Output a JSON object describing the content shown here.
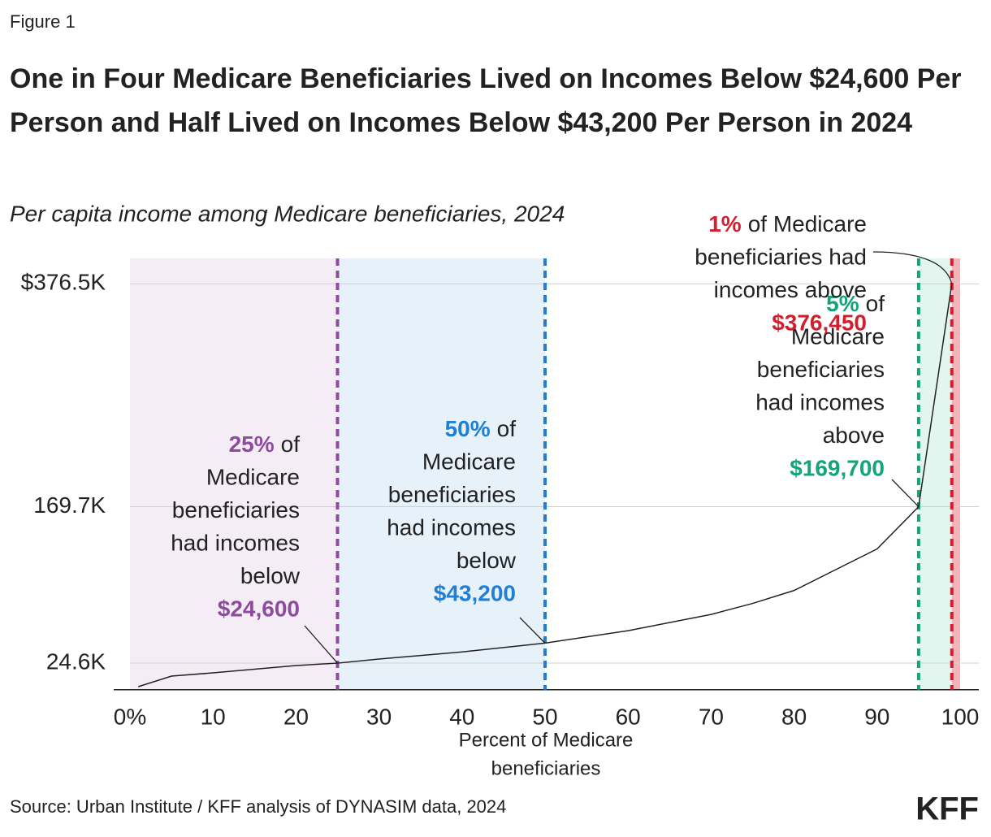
{
  "chart_data": {
    "type": "line",
    "figure_label": "Figure 1",
    "title": "One in Four Medicare Beneficiaries Lived on Incomes Below $24,600 Per Person and Half Lived on Incomes Below $43,200 Per Person in 2024",
    "subtitle": "Per capita income among Medicare beneficiaries, 2024",
    "xlabel": [
      "Percent of Medicare",
      "beneficiaries"
    ],
    "source": "Source: Urban Institute / KFF analysis of DYNASIM data, 2024",
    "logo": "KFF",
    "x": [
      1,
      5,
      10,
      20,
      25,
      30,
      40,
      50,
      60,
      70,
      75,
      80,
      90,
      95,
      99
    ],
    "series": [
      {
        "color": "#222222",
        "values": [
          2800,
          12600,
          15600,
          22400,
          24600,
          28400,
          35000,
          43200,
          54700,
          69800,
          80000,
          92000,
          130500,
          169700,
          376450
        ]
      }
    ],
    "xlim": [
      0,
      100
    ],
    "xticks": [
      {
        "value": 0,
        "label": "0%"
      },
      10,
      20,
      30,
      40,
      50,
      60,
      70,
      80,
      90,
      100
    ],
    "ylim": [
      0,
      400000
    ],
    "yticks": [
      {
        "value": 24600,
        "label": "24.6K"
      },
      {
        "value": 169700,
        "label": "169.7K"
      },
      {
        "value": 376450,
        "label": "$376.5K"
      }
    ],
    "grid": true,
    "annotations": [
      {
        "x": 25,
        "lead": "25%",
        "lines": [
          "of",
          "Medicare",
          "beneficiaries",
          "had incomes",
          "below"
        ],
        "value": "$24,600",
        "color": "#8e4a9d",
        "fill": "#f4edf6"
      },
      {
        "x": 50,
        "lead": "50%",
        "lines": [
          "of",
          "Medicare",
          "beneficiaries",
          "had incomes",
          "below"
        ],
        "value": "$43,200",
        "color": "#1f7fd4",
        "fill": "#e7f1fa"
      },
      {
        "x": 95,
        "lead": "5%",
        "lines": [
          "of",
          "Medicare",
          "beneficiaries",
          "had incomes",
          "above"
        ],
        "value": "$169,700",
        "color": "#12a57a",
        "fill": "#e2f5ee"
      },
      {
        "x": 99,
        "lead": "1%",
        "lines": [
          "of Medicare",
          "beneficiaries had",
          "incomes above"
        ],
        "value": "$376,450",
        "color": "#d11f2e",
        "fill": "#f4b4ba"
      }
    ]
  }
}
